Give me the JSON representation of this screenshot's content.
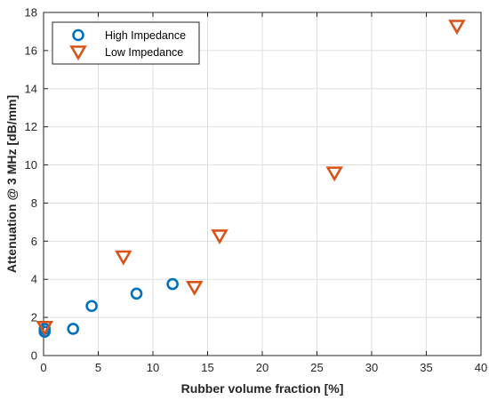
{
  "chart_data": {
    "type": "scatter",
    "title": "",
    "xlabel": "Rubber volume fraction [%]",
    "ylabel": "Attenuation @ 3 MHz [dB/mm]",
    "xlim": [
      0,
      40
    ],
    "ylim": [
      0,
      18
    ],
    "xticks": [
      "0",
      "5",
      "10",
      "15",
      "20",
      "25",
      "30",
      "35",
      "40"
    ],
    "yticks": [
      "0",
      "2",
      "4",
      "6",
      "8",
      "10",
      "12",
      "14",
      "16",
      "18"
    ],
    "grid": true,
    "legend_position": "top-left",
    "series": [
      {
        "name": "High Impedance",
        "marker": "circle",
        "color": "#0072BD",
        "points": [
          [
            0.1,
            1.25
          ],
          [
            0.1,
            1.4
          ],
          [
            2.7,
            1.4
          ],
          [
            4.4,
            2.6
          ],
          [
            8.5,
            3.25
          ],
          [
            11.8,
            3.75
          ]
        ]
      },
      {
        "name": "Low Impedance",
        "marker": "triangle-down",
        "color": "#D95319",
        "points": [
          [
            0.1,
            1.5
          ],
          [
            7.3,
            5.2
          ],
          [
            13.8,
            3.6
          ],
          [
            16.1,
            6.3
          ],
          [
            26.6,
            9.6
          ],
          [
            37.8,
            17.3
          ]
        ]
      }
    ]
  }
}
